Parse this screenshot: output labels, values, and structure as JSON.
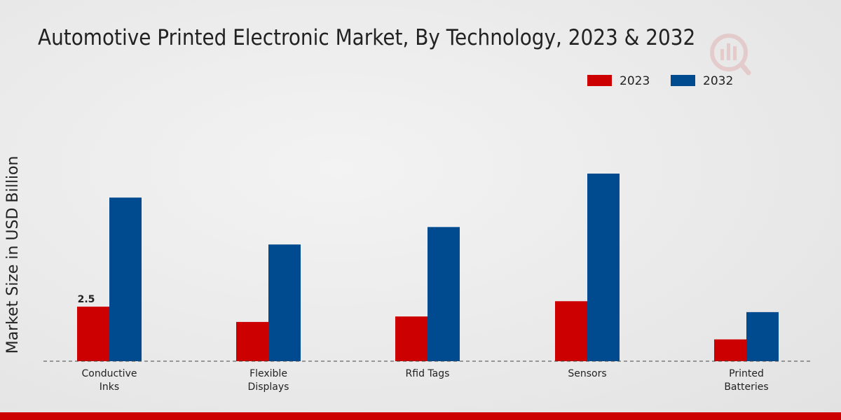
{
  "chart_data": {
    "type": "bar",
    "title": "Automotive Printed Electronic Market, By Technology, 2023 & 2032",
    "ylabel": "Market Size in USD Billion",
    "xlabel": "",
    "categories": [
      [
        "Conductive",
        "Inks"
      ],
      [
        "Flexible",
        "Displays"
      ],
      [
        "Rfid Tags"
      ],
      [
        "Sensors"
      ],
      [
        "Printed",
        "Batteries"
      ]
    ],
    "series": [
      {
        "name": "2023",
        "color": "#cc0000",
        "values": [
          2.5,
          1.8,
          2.05,
          2.75,
          1.0
        ]
      },
      {
        "name": "2032",
        "color": "#004a8f",
        "values": [
          7.5,
          5.35,
          6.15,
          8.6,
          2.25
        ]
      }
    ],
    "data_labels": [
      {
        "series": 0,
        "index": 0,
        "text": "2.5"
      }
    ],
    "ylim": [
      0,
      14.6
    ],
    "grid": false,
    "legend": "top-right"
  }
}
